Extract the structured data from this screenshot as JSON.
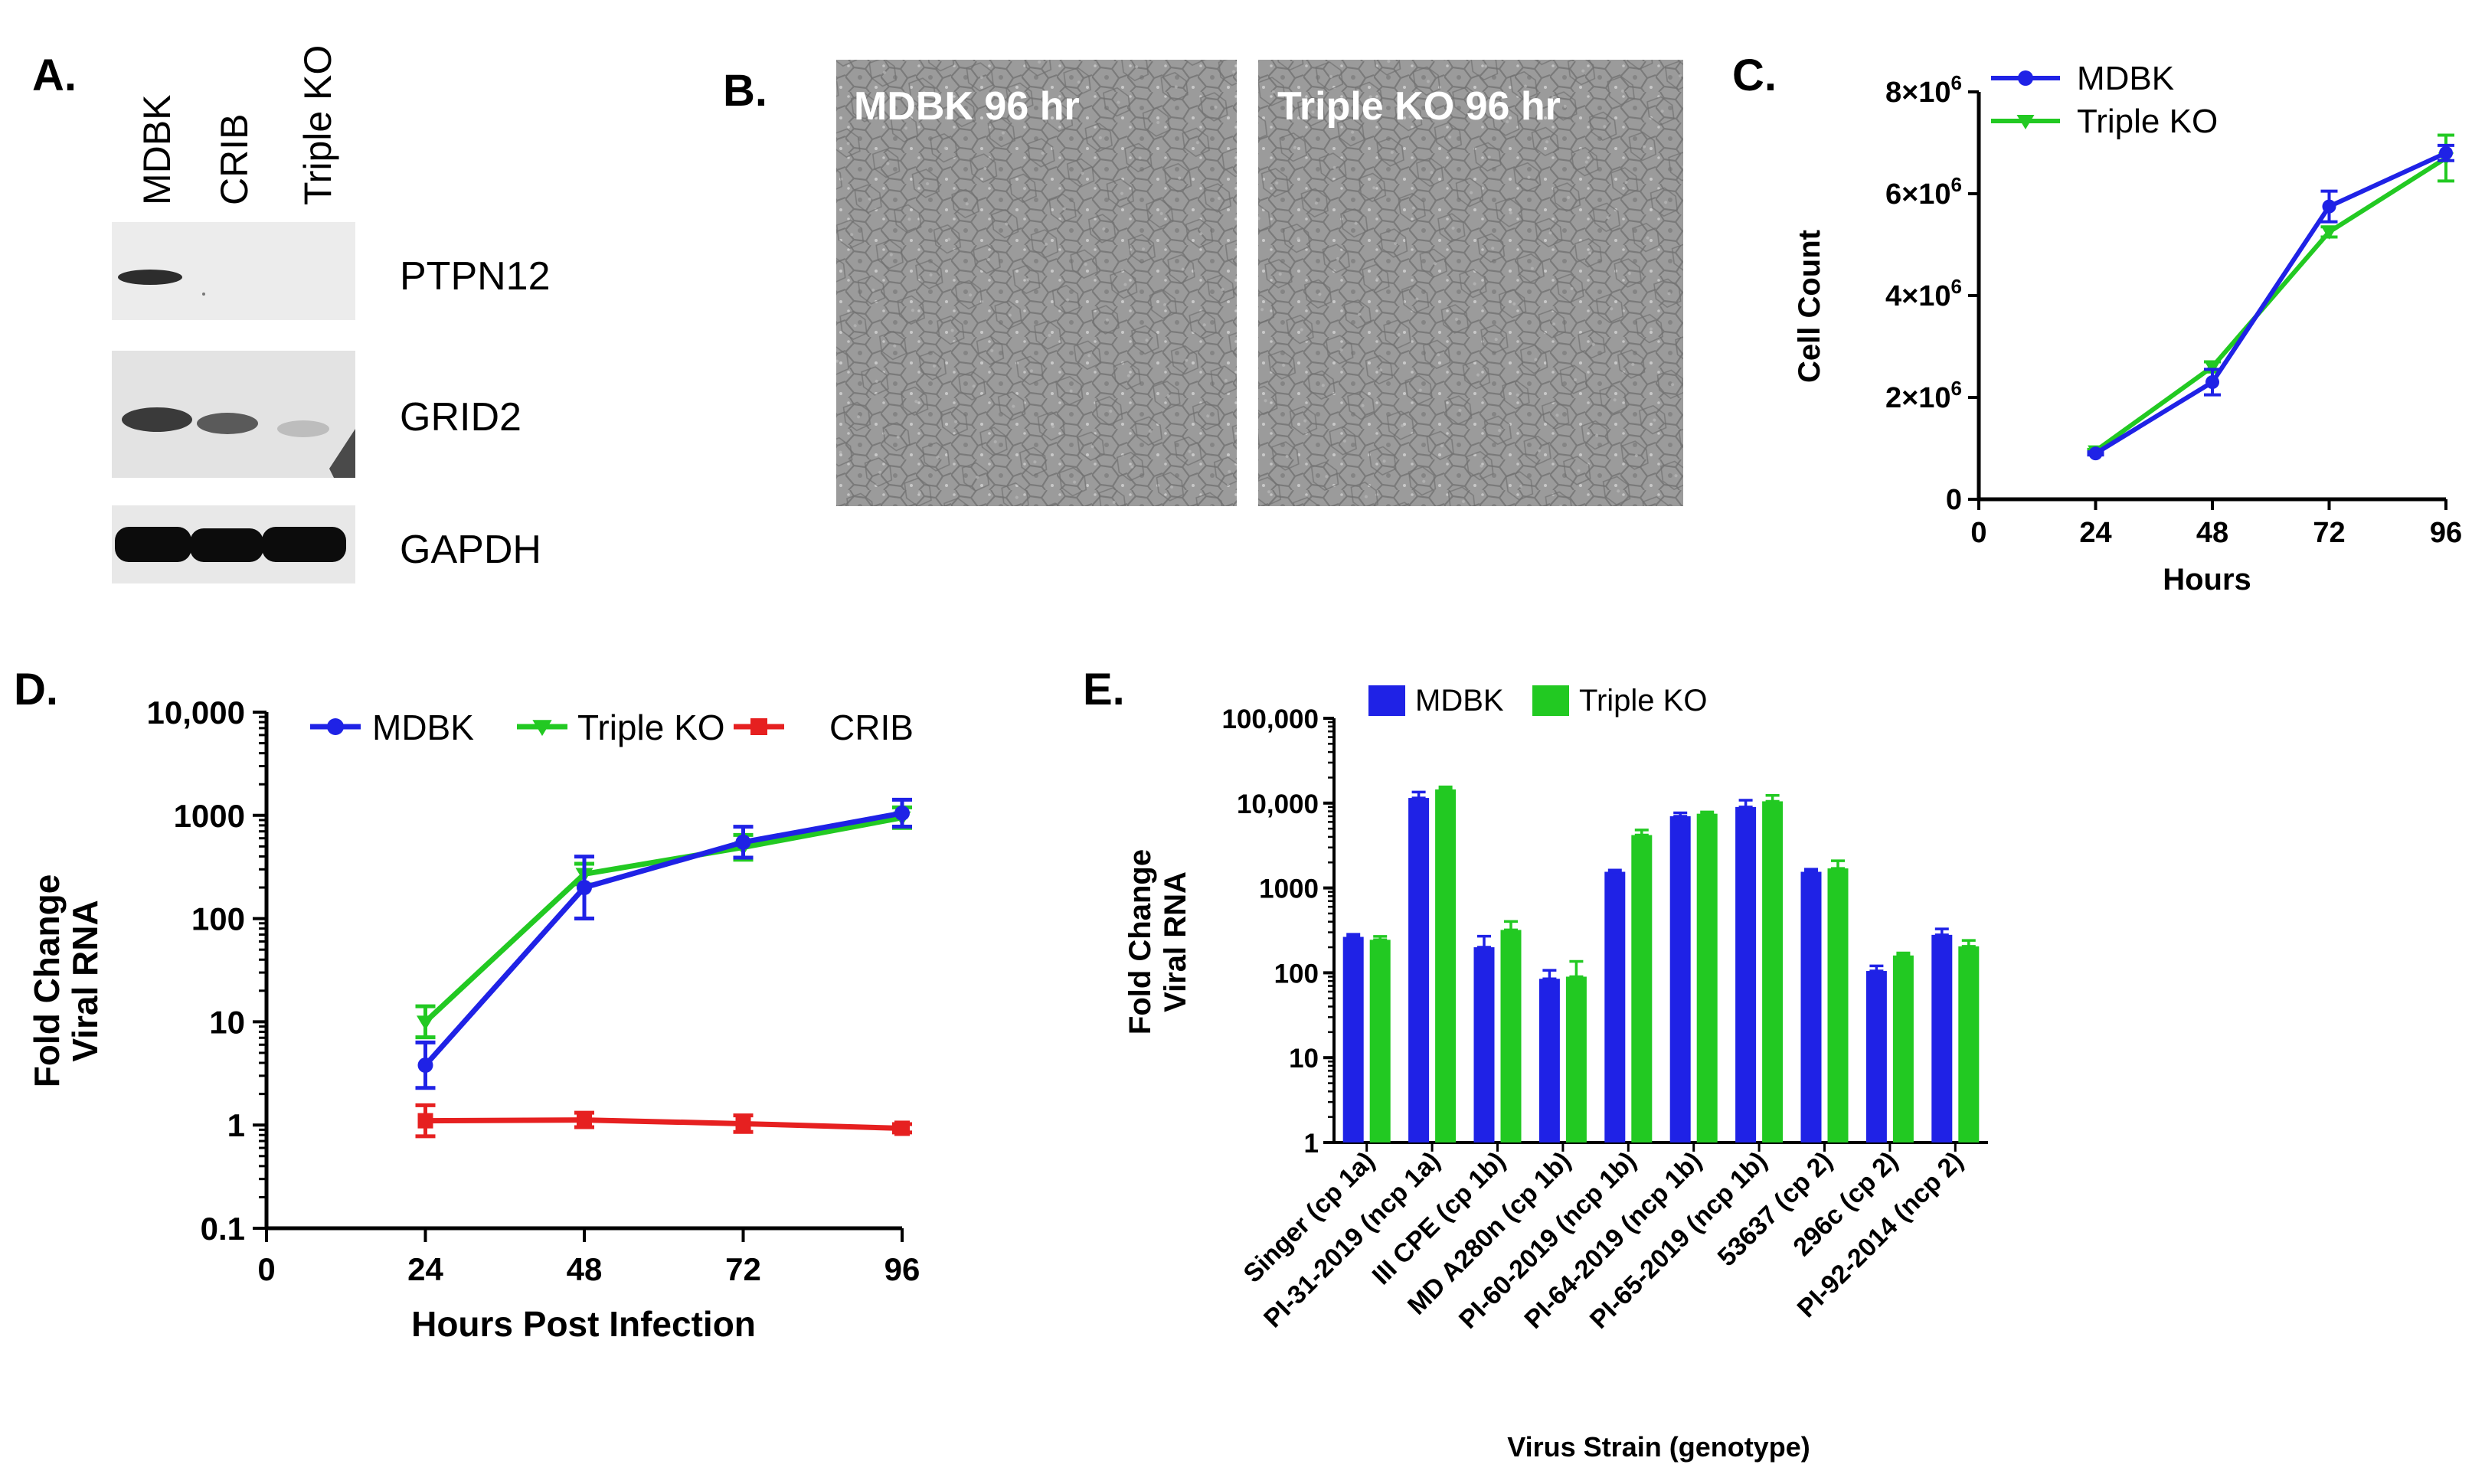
{
  "colors": {
    "mdbk": "#1f22e6",
    "triple_ko": "#22c922",
    "crib": "#e62020",
    "blot_bg": "#e9e9e9",
    "micro_bg": "#9a9a9a",
    "micro_dark": "#6e6e6e"
  },
  "panel_a": {
    "letter": "A.",
    "lanes": [
      "MDBK",
      "CRIB",
      "Triple KO"
    ],
    "bands": [
      "PTPN12",
      "GRID2",
      "GAPDH"
    ]
  },
  "panel_b": {
    "letter": "B.",
    "images": [
      "MDBK 96 hr",
      "Triple KO 96 hr"
    ]
  },
  "chart_data": [
    {
      "panel": "C.",
      "type": "line",
      "title": "",
      "xlabel": "Hours",
      "ylabel": "Cell Count",
      "x": [
        24,
        48,
        72,
        96
      ],
      "xticks": [
        0,
        24,
        48,
        72,
        96
      ],
      "xlim": [
        0,
        96
      ],
      "ylim": [
        0,
        8000000
      ],
      "yticks": [
        {
          "value": 0,
          "mantissa": "0",
          "exp": ""
        },
        {
          "value": 2000000,
          "mantissa": "2×10",
          "exp": "6"
        },
        {
          "value": 4000000,
          "mantissa": "4×10",
          "exp": "6"
        },
        {
          "value": 6000000,
          "mantissa": "6×10",
          "exp": "6"
        },
        {
          "value": 8000000,
          "mantissa": "8×10",
          "exp": "6"
        }
      ],
      "series": [
        {
          "name": "MDBK",
          "marker": "circle",
          "values": [
            900000,
            2300000,
            5750000,
            6800000
          ],
          "errors": [
            30000,
            250000,
            300000,
            150000
          ]
        },
        {
          "name": "Triple KO",
          "marker": "triangle-down",
          "values": [
            950000,
            2600000,
            5250000,
            6700000
          ],
          "errors": [
            30000,
            100000,
            100000,
            450000
          ]
        }
      ],
      "legend": "top-left"
    },
    {
      "panel": "D.",
      "type": "line",
      "title": "",
      "xlabel": "Hours Post Infection",
      "ylabel": [
        "Fold Change",
        "Viral RNA"
      ],
      "yscale": "log",
      "x": [
        24,
        48,
        72,
        96
      ],
      "xticks": [
        0,
        24,
        48,
        72,
        96
      ],
      "xlim": [
        0,
        96
      ],
      "ylim": [
        0.1,
        10000
      ],
      "yticks": [
        {
          "value": 0.1,
          "label": "0.1"
        },
        {
          "value": 1,
          "label": "1"
        },
        {
          "value": 10,
          "label": "10"
        },
        {
          "value": 100,
          "label": "100"
        },
        {
          "value": 1000,
          "label": "1000"
        },
        {
          "value": 10000,
          "label": "10,000"
        }
      ],
      "series": [
        {
          "name": "MDBK",
          "marker": "circle",
          "values": [
            3.8,
            200,
            550,
            1050
          ],
          "errors_log": [
            0.22,
            0.3,
            0.15,
            0.13
          ]
        },
        {
          "name": "Triple KO",
          "marker": "triangle-down",
          "values": [
            10,
            270,
            490,
            950
          ],
          "errors_log": [
            0.15,
            0.1,
            0.12,
            0.1
          ]
        },
        {
          "name": "CRIB",
          "marker": "square",
          "values": [
            1.1,
            1.12,
            1.03,
            0.93
          ],
          "errors_log": [
            0.15,
            0.07,
            0.08,
            0.04
          ]
        }
      ],
      "legend": "top"
    },
    {
      "panel": "E.",
      "type": "bar",
      "title": "",
      "xlabel": "Virus Strain (genotype)",
      "ylabel": [
        "Fold Change",
        "Viral RNA"
      ],
      "yscale": "log",
      "ylim": [
        1,
        100000
      ],
      "yticks": [
        {
          "value": 1,
          "label": "1"
        },
        {
          "value": 10,
          "label": "10"
        },
        {
          "value": 100,
          "label": "100"
        },
        {
          "value": 1000,
          "label": "1000"
        },
        {
          "value": 10000,
          "label": "10,000"
        },
        {
          "value": 100000,
          "label": "100,000"
        }
      ],
      "categories": [
        "Singer (cp 1a)",
        "PI-31-2019 (ncp 1a)",
        "III CPE (cp 1b)",
        "MD A280n (cp 1b)",
        "PI-60-2019 (ncp 1b)",
        "PI-64-2019 (ncp 1b)",
        "PI-65-2019 (ncp 1b)",
        "53637 (cp 2)",
        "296c (cp 2)",
        "PI-92-2014 (ncp 2)"
      ],
      "series": [
        {
          "name": "MDBK",
          "values": [
            265,
            11500,
            200,
            85,
            1550,
            7000,
            9000,
            1550,
            105,
            280
          ],
          "errors_log": [
            0.03,
            0.07,
            0.13,
            0.1,
            0.02,
            0.04,
            0.08,
            0.03,
            0.06,
            0.07
          ]
        },
        {
          "name": "Triple KO",
          "values": [
            245,
            14500,
            320,
            90,
            4200,
            7500,
            10500,
            1700,
            160,
            205
          ],
          "errors_log": [
            0.04,
            0.03,
            0.1,
            0.18,
            0.06,
            0.02,
            0.07,
            0.09,
            0.03,
            0.07
          ]
        }
      ],
      "legend": "top"
    }
  ]
}
